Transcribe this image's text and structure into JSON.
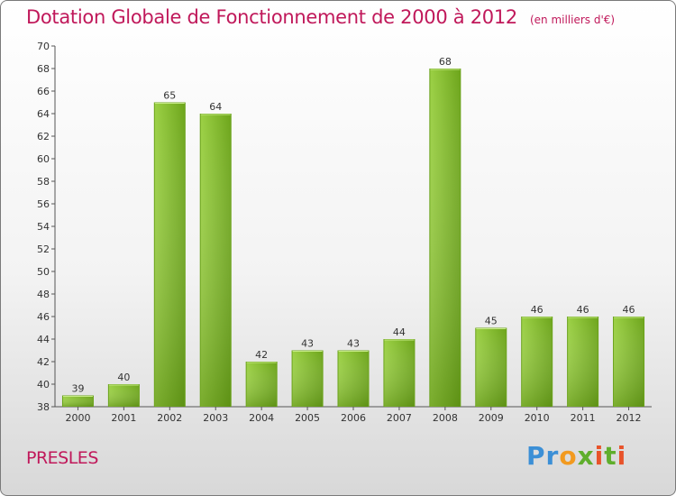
{
  "title": "Dotation Globale de Fonctionnement de 2000 à 2012",
  "subtitle": "(en milliers d'€)",
  "commune": "PRESLES",
  "logo": {
    "text": "Proxiti",
    "letters": [
      "P",
      "r",
      "o",
      "x",
      "i",
      "t",
      "i"
    ],
    "colors": [
      "#3b8fd6",
      "#3b8fd6",
      "#f29a1f",
      "#5fae2c",
      "#e8532a",
      "#5fae2c",
      "#e8532a"
    ]
  },
  "colors": {
    "bar_top": "#a9d65a",
    "bar_bottom": "#5c9a10",
    "text_accent": "#c0185a"
  },
  "chart_data": {
    "type": "bar",
    "title": "Dotation Globale de Fonctionnement de 2000 à 2012",
    "subtitle": "(en milliers d'€)",
    "xlabel": "",
    "ylabel": "",
    "categories": [
      "2000",
      "2001",
      "2002",
      "2003",
      "2004",
      "2005",
      "2006",
      "2007",
      "2008",
      "2009",
      "2010",
      "2011",
      "2012"
    ],
    "values": [
      39,
      40,
      65,
      64,
      42,
      43,
      43,
      44,
      68,
      45,
      46,
      46,
      46
    ],
    "ylim": [
      38,
      70
    ],
    "ytick_step": 2,
    "grid": false,
    "data_labels": true
  }
}
